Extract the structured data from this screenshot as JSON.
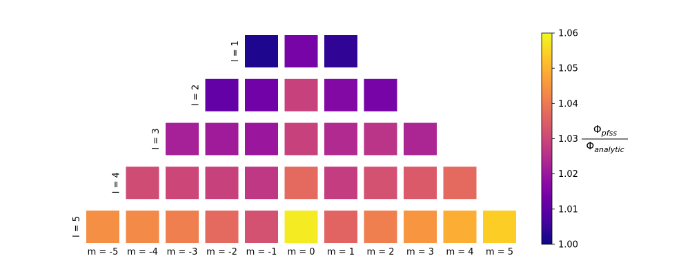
{
  "chart_data": {
    "type": "heatmap",
    "title": "",
    "colormap": "plasma",
    "row_labels": [
      "l = 1",
      "l = 2",
      "l = 3",
      "l = 4",
      "l = 5"
    ],
    "col_labels": [
      "m = -5",
      "m = -4",
      "m = -3",
      "m = -2",
      "m = -1",
      "m = 0",
      "m = 1",
      "m = 2",
      "m = 3",
      "m = 4",
      "m = 5"
    ],
    "rows": [
      {
        "l": 1,
        "m": [
          -1,
          0,
          1
        ],
        "values": [
          1.002,
          1.014,
          1.004
        ]
      },
      {
        "l": 2,
        "m": [
          -2,
          -1,
          0,
          1,
          2
        ],
        "values": [
          1.011,
          1.013,
          1.029,
          1.016,
          1.014
        ]
      },
      {
        "l": 3,
        "m": [
          -3,
          -2,
          -1,
          0,
          1,
          2,
          3
        ],
        "values": [
          1.022,
          1.021,
          1.02,
          1.029,
          1.024,
          1.026,
          1.023
        ]
      },
      {
        "l": 4,
        "m": [
          -4,
          -3,
          -2,
          -1,
          0,
          1,
          2,
          3,
          4
        ],
        "values": [
          1.031,
          1.03,
          1.029,
          1.027,
          1.037,
          1.028,
          1.032,
          1.034,
          1.037
        ]
      },
      {
        "l": 5,
        "m": [
          -5,
          -4,
          -3,
          -2,
          -1,
          0,
          1,
          2,
          3,
          4,
          5
        ],
        "values": [
          1.044,
          1.043,
          1.041,
          1.037,
          1.032,
          1.058,
          1.036,
          1.041,
          1.045,
          1.049,
          1.054
        ]
      }
    ],
    "colorbar": {
      "min": 1.0,
      "max": 1.06,
      "ticks": [
        "1.00",
        "1.01",
        "1.02",
        "1.03",
        "1.04",
        "1.05",
        "1.06"
      ],
      "label_numerator": "Φ",
      "label_numerator_sub": "pfss",
      "label_denominator": "Φ",
      "label_denominator_sub": "analytic"
    },
    "grid": false
  }
}
